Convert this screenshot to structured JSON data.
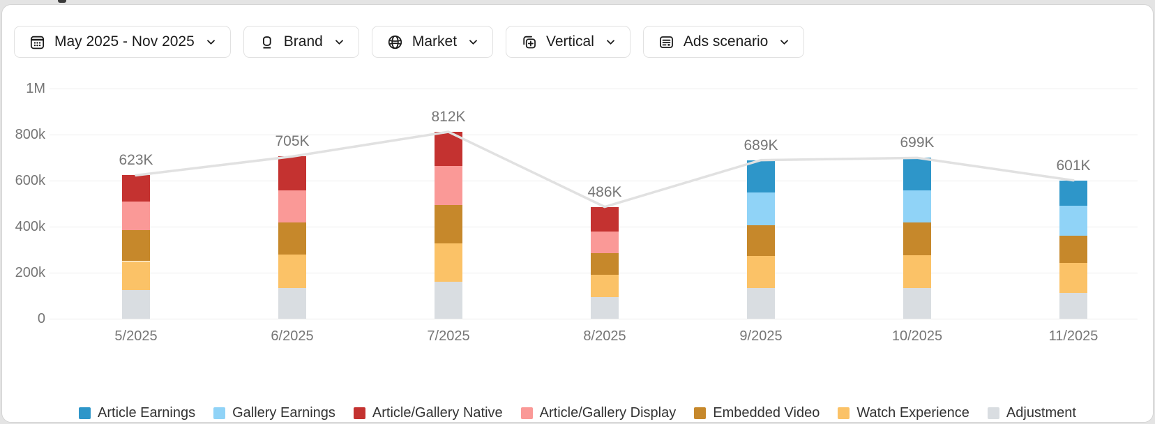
{
  "page": {
    "background": "#e4e4e4",
    "card_background": "#ffffff"
  },
  "filters": [
    {
      "label": "May 2025 - Nov 2025",
      "icon": "calendar-icon"
    },
    {
      "label": "Brand",
      "icon": "brand-icon"
    },
    {
      "label": "Market",
      "icon": "globe-icon"
    },
    {
      "label": "Vertical",
      "icon": "vertical-add-icon"
    },
    {
      "label": "Ads scenario",
      "icon": "ads-scenario-icon"
    }
  ],
  "chart_data": {
    "type": "bar",
    "stacked": true,
    "title": "",
    "xlabel": "",
    "ylabel": "",
    "unit": "values in thousands (k)",
    "ylim": [
      0,
      1000
    ],
    "grid": true,
    "legend_position": "bottom",
    "categories": [
      "5/2025",
      "6/2025",
      "7/2025",
      "8/2025",
      "9/2025",
      "10/2025",
      "11/2025"
    ],
    "y_ticks": [
      {
        "value": 1000,
        "label": "1M"
      },
      {
        "value": 800,
        "label": "800k"
      },
      {
        "value": 600,
        "label": "600k"
      },
      {
        "value": 400,
        "label": "400k"
      },
      {
        "value": 200,
        "label": "200k"
      },
      {
        "value": 0,
        "label": "0"
      }
    ],
    "series": [
      {
        "name": "Adjustment",
        "color": "#D9DDE1",
        "values": [
          124,
          133,
          162,
          93,
          132,
          133,
          113
        ]
      },
      {
        "name": "Watch Experience",
        "color": "#FBC267",
        "values": [
          126,
          147,
          165,
          99,
          140,
          144,
          129
        ]
      },
      {
        "name": "Embedded Video",
        "color": "#C6882B",
        "values": [
          134,
          139,
          167,
          92,
          135,
          142,
          120
        ]
      },
      {
        "name": "Article/Gallery Display",
        "color": "#FA9997",
        "values": [
          124,
          139,
          169,
          95,
          0,
          0,
          0
        ]
      },
      {
        "name": "Article/Gallery Native",
        "color": "#C43230",
        "values": [
          115,
          147,
          149,
          107,
          0,
          0,
          0
        ]
      },
      {
        "name": "Gallery Earnings",
        "color": "#90D3F7",
        "values": [
          0,
          0,
          0,
          0,
          141,
          139,
          128
        ]
      },
      {
        "name": "Article Earnings",
        "color": "#2E96C9",
        "values": [
          0,
          0,
          0,
          0,
          141,
          141,
          111
        ]
      }
    ],
    "totals": [
      623,
      705,
      812,
      486,
      689,
      699,
      601
    ],
    "totals_labels": [
      "623K",
      "705K",
      "812K",
      "486K",
      "689K",
      "699K",
      "601K"
    ],
    "trend_line": {
      "follows": "totals",
      "color": "#E1E1E1",
      "width": 3.5
    },
    "label_color": "#767676",
    "gridline_color": "#ececec"
  },
  "legend": [
    {
      "name": "Article Earnings",
      "color": "#2E96C9"
    },
    {
      "name": "Gallery Earnings",
      "color": "#90D3F7"
    },
    {
      "name": "Article/Gallery Native",
      "color": "#C43230"
    },
    {
      "name": "Article/Gallery Display",
      "color": "#FA9997"
    },
    {
      "name": "Embedded Video",
      "color": "#C6882B"
    },
    {
      "name": "Watch Experience",
      "color": "#FBC267"
    },
    {
      "name": "Adjustment",
      "color": "#D9DDE1"
    }
  ]
}
